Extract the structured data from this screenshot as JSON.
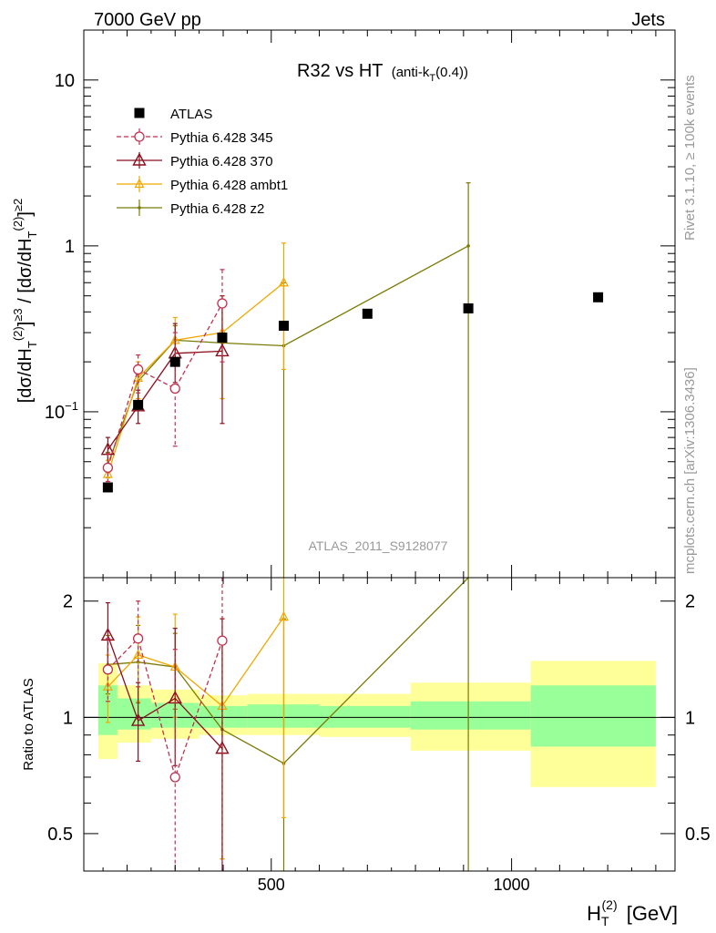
{
  "header": {
    "left": "7000 GeV pp",
    "right": "Jets"
  },
  "side": {
    "rivet": "Rivet 3.1.10, ≥ 100k events",
    "source": "mcplots.cern.ch [arXiv:1306.3436]"
  },
  "main_title": "R32 vs HT",
  "main_title_sub": "(anti-k",
  "main_title_sub_index": "T",
  "main_title_sub_end": "(0.4))",
  "analysis_id": "ATLAS_2011_S9128077",
  "ratio_ylabel": "Ratio to ATLAS",
  "colors": {
    "atlas": "#000000",
    "p345": "#c2304f",
    "p370": "#8b0f1f",
    "ambt1": "#f0a800",
    "z2": "#7a7a05",
    "band_inner": "#99ff99",
    "band_outer": "#ffff99"
  },
  "chart_data": [
    {
      "type": "scatter",
      "title": "R32 vs HT (anti-kT(0.4))",
      "xlabel": "H_T^(2) [GeV]",
      "ylabel": "[dσ/dH_T^(2)]^{≥3} / [dσ/dH_T^(2)]^{≥2}",
      "x_scale": "linear",
      "y_scale": "log",
      "xlim": [
        110,
        1340
      ],
      "ylim": [
        0.01,
        20
      ],
      "x_ticks": [
        500,
        1000
      ],
      "y_ticks": [
        {
          "value": 0.1,
          "label": "10",
          "exp": "−1"
        },
        {
          "value": 1,
          "label": "1",
          "exp": ""
        },
        {
          "value": 10,
          "label": "10",
          "exp": ""
        }
      ],
      "legend_position": "top-left",
      "series": [
        {
          "name": "ATLAS",
          "key": "atlas",
          "marker": "square",
          "points": [
            {
              "x": 160,
              "y": 0.035
            },
            {
              "x": 223,
              "y": 0.11
            },
            {
              "x": 300,
              "y": 0.2
            },
            {
              "x": 398,
              "y": 0.28
            },
            {
              "x": 526,
              "y": 0.33
            },
            {
              "x": 700,
              "y": 0.39
            },
            {
              "x": 910,
              "y": 0.42
            },
            {
              "x": 1180,
              "y": 0.49
            }
          ]
        },
        {
          "name": "Pythia 6.428 345",
          "key": "p345",
          "marker": "circle",
          "dash": true,
          "points": [
            {
              "x": 160,
              "y": 0.046,
              "lo": 0.038,
              "hi": 0.056
            },
            {
              "x": 223,
              "y": 0.18,
              "lo": 0.13,
              "hi": 0.22
            },
            {
              "x": 300,
              "y": 0.138,
              "lo": 0.062,
              "hi": 0.3
            },
            {
              "x": 398,
              "y": 0.45,
              "lo": 0.2,
              "hi": 0.72
            }
          ]
        },
        {
          "name": "Pythia 6.428 370",
          "key": "p370",
          "marker": "triangle",
          "dash": false,
          "points": [
            {
              "x": 160,
              "y": 0.059,
              "lo": 0.048,
              "hi": 0.07
            },
            {
              "x": 223,
              "y": 0.108,
              "lo": 0.085,
              "hi": 0.135
            },
            {
              "x": 300,
              "y": 0.225,
              "lo": 0.15,
              "hi": 0.34
            },
            {
              "x": 398,
              "y": 0.232,
              "lo": 0.085,
              "hi": 0.5
            }
          ]
        },
        {
          "name": "Pythia 6.428 ambt1",
          "key": "ambt1",
          "marker": "triangle-small",
          "dash": false,
          "points": [
            {
              "x": 160,
              "y": 0.042,
              "lo": 0.034,
              "hi": 0.051
            },
            {
              "x": 223,
              "y": 0.16,
              "lo": 0.12,
              "hi": 0.2
            },
            {
              "x": 300,
              "y": 0.27,
              "lo": 0.2,
              "hi": 0.37
            },
            {
              "x": 398,
              "y": 0.3,
              "lo": 0.12,
              "hi": 0.5
            },
            {
              "x": 526,
              "y": 0.6,
              "lo": 0.18,
              "hi": 1.04
            }
          ]
        },
        {
          "name": "Pythia 6.428 z2",
          "key": "z2",
          "marker": "dot",
          "dash": false,
          "points": [
            {
              "x": 160,
              "y": 0.048,
              "lo": 0.04,
              "hi": 0.057
            },
            {
              "x": 223,
              "y": 0.153,
              "lo": 0.12,
              "hi": 0.19
            },
            {
              "x": 300,
              "y": 0.27,
              "lo": 0.21,
              "hi": 0.33
            },
            {
              "x": 398,
              "y": 0.26,
              "lo": 0.12,
              "hi": 0.44
            },
            {
              "x": 526,
              "y": 0.25,
              "lo": 0.001,
              "hi": 0.6
            },
            {
              "x": 910,
              "y": 1.0,
              "lo": 0.001,
              "hi": 2.4
            }
          ]
        }
      ]
    },
    {
      "type": "line",
      "ylabel": "Ratio to ATLAS",
      "x_scale": "linear",
      "y_scale": "log",
      "xlim": [
        110,
        1340
      ],
      "ylim": [
        0.4,
        2.3
      ],
      "y_ticks": [
        {
          "value": 0.5,
          "label": "0.5"
        },
        {
          "value": 1,
          "label": "1"
        },
        {
          "value": 2,
          "label": "2"
        }
      ],
      "bands": [
        {
          "x0": 140,
          "x1": 180,
          "inner_lo": 0.9,
          "inner_hi": 1.21,
          "outer_lo": 0.78,
          "outer_hi": 1.38
        },
        {
          "x0": 180,
          "x1": 250,
          "inner_lo": 0.93,
          "inner_hi": 1.12,
          "outer_lo": 0.86,
          "outer_hi": 1.21
        },
        {
          "x0": 250,
          "x1": 350,
          "inner_lo": 0.94,
          "inner_hi": 1.09,
          "outer_lo": 0.88,
          "outer_hi": 1.18
        },
        {
          "x0": 350,
          "x1": 450,
          "inner_lo": 0.94,
          "inner_hi": 1.07,
          "outer_lo": 0.9,
          "outer_hi": 1.14
        },
        {
          "x0": 450,
          "x1": 600,
          "inner_lo": 0.94,
          "inner_hi": 1.08,
          "outer_lo": 0.9,
          "outer_hi": 1.15
        },
        {
          "x0": 600,
          "x1": 790,
          "inner_lo": 0.94,
          "inner_hi": 1.07,
          "outer_lo": 0.89,
          "outer_hi": 1.15
        },
        {
          "x0": 790,
          "x1": 1040,
          "inner_lo": 0.93,
          "inner_hi": 1.1,
          "outer_lo": 0.82,
          "outer_hi": 1.23
        },
        {
          "x0": 1040,
          "x1": 1300,
          "inner_lo": 0.84,
          "inner_hi": 1.21,
          "outer_lo": 0.66,
          "outer_hi": 1.4
        }
      ],
      "series": [
        {
          "name": "Pythia 6.428 345",
          "key": "p345",
          "marker": "circle",
          "dash": true,
          "points": [
            {
              "x": 160,
              "y": 1.33,
              "lo": 1.1,
              "hi": 1.6
            },
            {
              "x": 223,
              "y": 1.6,
              "lo": 1.2,
              "hi": 2.0
            },
            {
              "x": 300,
              "y": 0.7,
              "lo": 0.3,
              "hi": 1.5
            },
            {
              "x": 398,
              "y": 1.58,
              "lo": 0.3,
              "hi": 2.5
            }
          ]
        },
        {
          "name": "Pythia 6.428 370",
          "key": "p370",
          "marker": "triangle",
          "dash": false,
          "points": [
            {
              "x": 160,
              "y": 1.63,
              "lo": 1.35,
              "hi": 1.98
            },
            {
              "x": 223,
              "y": 0.98,
              "lo": 0.77,
              "hi": 1.23
            },
            {
              "x": 300,
              "y": 1.12,
              "lo": 0.75,
              "hi": 1.7
            },
            {
              "x": 398,
              "y": 0.83,
              "lo": 0.3,
              "hi": 1.8
            }
          ]
        },
        {
          "name": "Pythia 6.428 ambt1",
          "key": "ambt1",
          "marker": "triangle-small",
          "dash": false,
          "points": [
            {
              "x": 160,
              "y": 1.2,
              "lo": 0.97,
              "hi": 1.45
            },
            {
              "x": 223,
              "y": 1.45,
              "lo": 1.1,
              "hi": 1.82
            },
            {
              "x": 300,
              "y": 1.35,
              "lo": 1.0,
              "hi": 1.85
            },
            {
              "x": 398,
              "y": 1.07,
              "lo": 0.43,
              "hi": 1.8
            },
            {
              "x": 526,
              "y": 1.82,
              "lo": 0.55,
              "hi": 3.2
            }
          ]
        },
        {
          "name": "Pythia 6.428 z2",
          "key": "z2",
          "marker": "dot",
          "dash": false,
          "points": [
            {
              "x": 160,
              "y": 1.37,
              "lo": 1.15,
              "hi": 1.63
            },
            {
              "x": 223,
              "y": 1.39,
              "lo": 1.09,
              "hi": 1.73
            },
            {
              "x": 300,
              "y": 1.35,
              "lo": 1.05,
              "hi": 1.65
            },
            {
              "x": 398,
              "y": 0.93,
              "lo": 0.43,
              "hi": 1.57
            },
            {
              "x": 526,
              "y": 0.76,
              "lo": 0.2,
              "hi": 1.8
            },
            {
              "x": 910,
              "y": 2.4,
              "lo": 0.2,
              "hi": 5.7
            }
          ]
        }
      ]
    }
  ]
}
